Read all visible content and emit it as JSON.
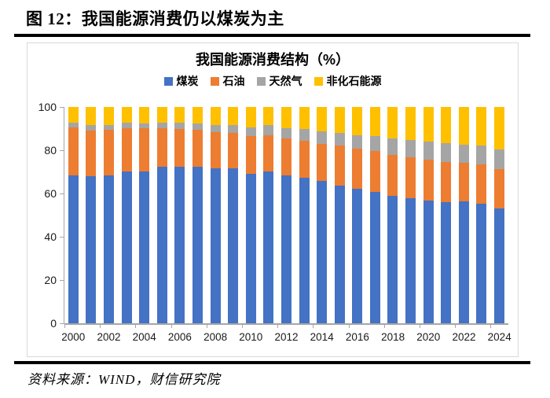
{
  "figure_title": "图 12：我国能源消费仍以煤炭为主",
  "source_note": "资料来源：WIND，财信研究院",
  "chart": {
    "title": "我国能源消费结构（%）",
    "y_tick_values": [
      100,
      80,
      60,
      40,
      20,
      0
    ],
    "x_tick_labels": [
      "2000",
      "2002",
      "2004",
      "2006",
      "2008",
      "2010",
      "2012",
      "2014",
      "2016",
      "2018",
      "2020",
      "2022",
      "2024"
    ],
    "axis_color": "#A6A6A6"
  },
  "chart_data": {
    "type": "bar",
    "stacked": true,
    "title": "我国能源消费结构（%）",
    "categories": [
      2000,
      2001,
      2002,
      2003,
      2004,
      2005,
      2006,
      2007,
      2008,
      2009,
      2010,
      2011,
      2012,
      2013,
      2014,
      2015,
      2016,
      2017,
      2018,
      2019,
      2020,
      2021,
      2022,
      2023,
      2024
    ],
    "series": [
      {
        "name": "煤炭",
        "key": "coal",
        "color": "#4472C4",
        "values": [
          68.5,
          68.0,
          68.5,
          70.2,
          70.2,
          72.4,
          72.4,
          72.5,
          71.5,
          71.6,
          69.2,
          70.2,
          68.5,
          67.4,
          65.8,
          63.8,
          62.2,
          60.6,
          59.0,
          57.7,
          56.9,
          56.0,
          56.2,
          55.3,
          53.2
        ]
      },
      {
        "name": "石油",
        "key": "oil",
        "color": "#ED7D31",
        "values": [
          22.0,
          21.2,
          21.0,
          20.1,
          19.9,
          17.8,
          17.5,
          17.0,
          16.7,
          16.4,
          17.4,
          16.8,
          17.0,
          17.1,
          17.3,
          18.4,
          18.7,
          18.9,
          18.9,
          19.0,
          18.8,
          18.5,
          17.9,
          18.3,
          18.2
        ]
      },
      {
        "name": "天然气",
        "key": "gas",
        "color": "#A5A5A5",
        "values": [
          2.2,
          2.4,
          2.3,
          2.3,
          2.3,
          2.4,
          2.7,
          3.0,
          3.4,
          3.5,
          4.0,
          4.6,
          4.8,
          5.3,
          5.6,
          5.8,
          6.1,
          6.9,
          7.6,
          8.0,
          8.4,
          8.9,
          8.4,
          8.5,
          8.8
        ]
      },
      {
        "name": "非化石能源",
        "key": "nonfossil",
        "color": "#FFC000",
        "values": [
          7.3,
          8.4,
          8.2,
          7.4,
          7.6,
          7.4,
          7.4,
          7.5,
          8.4,
          8.5,
          9.4,
          8.4,
          9.7,
          10.2,
          11.3,
          12.0,
          13.0,
          13.6,
          14.5,
          15.3,
          15.9,
          16.6,
          17.5,
          17.9,
          19.8
        ]
      }
    ],
    "ylim": [
      0,
      100
    ],
    "xlabel": "",
    "ylabel": "",
    "legend_position": "top",
    "grid": false
  }
}
